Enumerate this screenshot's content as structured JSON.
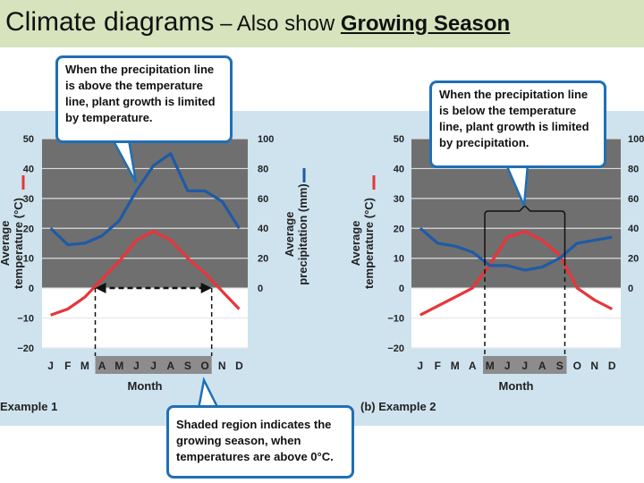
{
  "slide": {
    "title_part1": "Climate diagrams",
    "title_part2": " – Also show ",
    "title_part3": "Growing Season"
  },
  "callouts": {
    "a": "When the precipitation line is above the temperature line, plant growth is limited by temperature.",
    "b": "When the precipitation line is below the temperature line, plant growth is limited by precipitation.",
    "c": "Shaded region indicates the growing season, when temperatures are above 0°C."
  },
  "colors": {
    "temperature": "#e8353a",
    "precipitation": "#1f5aa6",
    "background": "#cfe3ef",
    "plot_dark": "#6f6f6f",
    "growing_season_shade": "#8c8c8c",
    "callout_border": "#1f6fb5",
    "title_bar": "#d6e3bc"
  },
  "chart_data": [
    {
      "type": "line",
      "panel_label": "Example 1",
      "categories": [
        "J",
        "F",
        "M",
        "A",
        "M",
        "J",
        "J",
        "A",
        "S",
        "O",
        "N",
        "D"
      ],
      "series": [
        {
          "axis": "left",
          "values": [
            -9,
            -7,
            -3,
            3,
            9,
            16,
            19,
            16,
            10,
            5,
            -1,
            -7
          ]
        },
        {
          "axis": "right",
          "values": [
            40,
            29,
            30,
            35,
            45,
            65,
            82,
            90,
            65,
            65,
            58,
            40
          ]
        }
      ],
      "xlabel": "Month",
      "ylabel_left": "Average temperature (°C)",
      "ylabel_right": "Average precipitation (mm)",
      "ylim_left": [
        -20,
        50
      ],
      "ylim_right": [
        0,
        100
      ],
      "yticks_left": [
        "50",
        "40",
        "30",
        "20",
        "10",
        "0",
        "−10",
        "−20"
      ],
      "yticks_right": [
        "100",
        "80",
        "60",
        "40",
        "20",
        "0"
      ],
      "growing_season_months": [
        3,
        9
      ]
    },
    {
      "type": "line",
      "panel_label": "(b) Example 2",
      "categories": [
        "J",
        "F",
        "M",
        "A",
        "M",
        "J",
        "J",
        "A",
        "S",
        "O",
        "N",
        "D"
      ],
      "series": [
        {
          "axis": "left",
          "values": [
            -9,
            -6,
            -3,
            0,
            8,
            17,
            19,
            16,
            11,
            0,
            -4,
            -7
          ]
        },
        {
          "axis": "right",
          "values": [
            40,
            30,
            28,
            24,
            15,
            15,
            12,
            14,
            20,
            30,
            32,
            34
          ]
        }
      ],
      "xlabel": "Month",
      "ylabel_left": "Average temperature (°C)",
      "ylabel_right": "",
      "ylim_left": [
        -20,
        50
      ],
      "ylim_right": [
        0,
        100
      ],
      "yticks_left": [
        "50",
        "40",
        "30",
        "20",
        "10",
        "0",
        "−10",
        "−20"
      ],
      "yticks_right": [
        "100",
        "80",
        "60",
        "40",
        "20",
        "0"
      ],
      "growing_season_months": [
        4,
        8
      ]
    }
  ]
}
